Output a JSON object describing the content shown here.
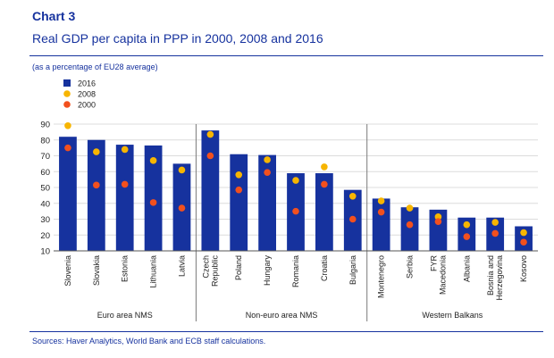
{
  "header": {
    "title": "Chart 3",
    "subtitle": "Real GDP per capita in PPP in 2000, 2008 and 2016",
    "unit_note": "(as a percentage of EU28 average)"
  },
  "footer": {
    "source": "Sources: Haver Analytics, World Bank and ECB staff calculations."
  },
  "colors": {
    "bar": "#16329e",
    "dot_2008": "#f7b500",
    "dot_2000": "#f2501e",
    "text": "#16329e",
    "grid": "#dcdcdc",
    "separator": "#7a7a7a"
  },
  "chart_data": {
    "type": "bar",
    "title": "Real GDP per capita in PPP in 2000, 2008 and 2016",
    "ylabel": "as a percentage of EU28 average",
    "ylim": [
      10,
      90
    ],
    "yticks": [
      10,
      20,
      30,
      40,
      50,
      60,
      70,
      80,
      90
    ],
    "grid": true,
    "legend_position": "top-left",
    "categories": [
      "Slovenia",
      "Slovakia",
      "Estonia",
      "Lithuania",
      "Latvia",
      "Czech Republic",
      "Poland",
      "Hungary",
      "Romania",
      "Croatia",
      "Bulgaria",
      "Montenegro",
      "Serbia",
      "FYR Macedonia",
      "Albania",
      "Bosnia and Herzegovina",
      "Kosovo"
    ],
    "category_label_lines": [
      [
        "Slovenia"
      ],
      [
        "Slovakia"
      ],
      [
        "Estonia"
      ],
      [
        "Lithuania"
      ],
      [
        "Latvia"
      ],
      [
        "Czech",
        "Republic"
      ],
      [
        "Poland"
      ],
      [
        "Hungary"
      ],
      [
        "Romania"
      ],
      [
        "Croatia"
      ],
      [
        "Bulgaria"
      ],
      [
        "Montenegro"
      ],
      [
        "Serbia"
      ],
      [
        "FYR",
        "Macedonia"
      ],
      [
        "Albania"
      ],
      [
        "Bosnia and",
        "Herzegovina"
      ],
      [
        "Kosovo"
      ]
    ],
    "groups": [
      {
        "name": "Euro area NMS",
        "start": 0,
        "end": 4
      },
      {
        "name": "Non-euro area NMS",
        "start": 5,
        "end": 10
      },
      {
        "name": "Western Balkans",
        "start": 11,
        "end": 16
      }
    ],
    "series": [
      {
        "name": "2016",
        "kind": "bar",
        "values": [
          82,
          80,
          77,
          76.5,
          65,
          86,
          71,
          70.5,
          59,
          59,
          48.5,
          43,
          37.5,
          36,
          31,
          31,
          25.5
        ]
      },
      {
        "name": "2008",
        "kind": "dot",
        "values": [
          89,
          72.5,
          74,
          67,
          61,
          83.5,
          58,
          67.5,
          54.5,
          63,
          44.5,
          41.5,
          37,
          31.5,
          26.5,
          28,
          21.5
        ]
      },
      {
        "name": "2000",
        "kind": "dot",
        "values": [
          75,
          51.5,
          52,
          40.5,
          37,
          70,
          48.5,
          59.5,
          35,
          52,
          30,
          34.5,
          26.5,
          28.5,
          19,
          21,
          15.5
        ]
      }
    ]
  }
}
